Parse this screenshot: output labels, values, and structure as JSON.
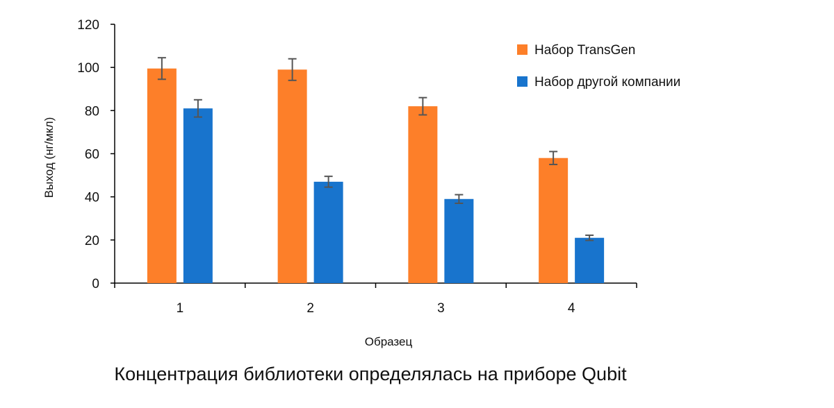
{
  "chart_data": {
    "type": "bar",
    "categories": [
      "1",
      "2",
      "3",
      "4"
    ],
    "series": [
      {
        "name": "Набор TransGen",
        "color": "#FD7F29",
        "values": [
          99.5,
          99,
          82,
          58
        ],
        "error": [
          5,
          5,
          4,
          3
        ]
      },
      {
        "name": "Набор другой компании",
        "color": "#1874CD",
        "values": [
          81,
          47,
          39,
          21
        ],
        "error": [
          4,
          2.5,
          2,
          1.2
        ]
      }
    ],
    "title": "",
    "xlabel": "Образец",
    "ylabel": "Выход (нг/мкл)",
    "ylim": [
      0,
      120
    ],
    "yticks": [
      0,
      20,
      40,
      60,
      80,
      100,
      120
    ],
    "grid": false,
    "legend_position": "top-right",
    "axis_color": "#000000",
    "error_bar_color": "#555555"
  },
  "caption": "Концентрация библиотеки определялась на приборе Qubit"
}
